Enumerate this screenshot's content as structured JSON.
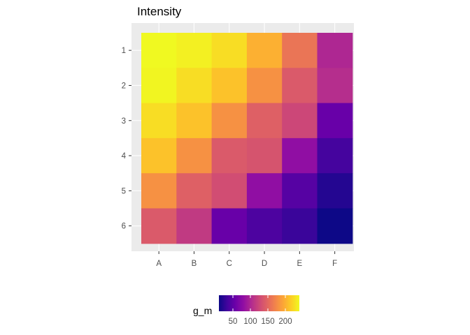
{
  "chart_data": {
    "type": "heatmap",
    "title": "Intensity",
    "xlabel": "",
    "ylabel": "",
    "x_categories": [
      "A",
      "B",
      "C",
      "D",
      "E",
      "F"
    ],
    "y_categories": [
      "1",
      "2",
      "3",
      "4",
      "5",
      "6"
    ],
    "values": [
      [
        240,
        235,
        225,
        200,
        160,
        100
      ],
      [
        238,
        225,
        210,
        180,
        140,
        105
      ],
      [
        225,
        210,
        180,
        145,
        125,
        55
      ],
      [
        210,
        180,
        140,
        135,
        80,
        35
      ],
      [
        180,
        145,
        130,
        80,
        45,
        20
      ],
      [
        140,
        115,
        55,
        40,
        30,
        5
      ]
    ],
    "legend": {
      "title": "g_m",
      "position": "bottom",
      "ticks": [
        50,
        100,
        150,
        200
      ],
      "range": [
        10,
        240
      ],
      "colormap": "plasma"
    },
    "panel_background": "#ebebeb",
    "grid": true
  }
}
